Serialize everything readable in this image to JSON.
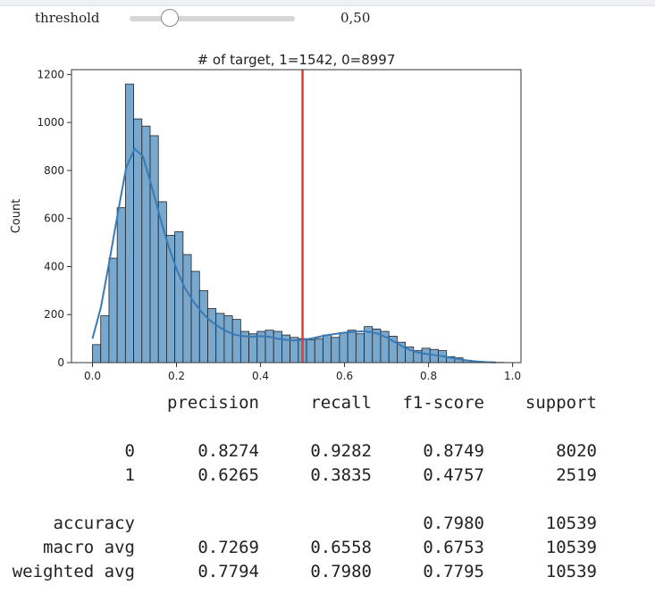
{
  "widget": {
    "label": "threshold",
    "value_text": "0,50",
    "value": 0.5,
    "min": 0,
    "max": 1
  },
  "chart_data": {
    "type": "bar",
    "title": "# of target, 1=1542, 0=8997",
    "xlabel": "",
    "ylabel": "Count",
    "xlim": [
      -0.05,
      1.02
    ],
    "ylim": [
      0,
      1220
    ],
    "xticks": [
      0.0,
      0.2,
      0.4,
      0.6,
      0.8,
      1.0
    ],
    "xtick_labels": [
      "0.0",
      "0.2",
      "0.4",
      "0.6",
      "0.8",
      "1.0"
    ],
    "yticks": [
      0,
      200,
      400,
      600,
      800,
      1000,
      1200
    ],
    "ytick_labels": [
      "0",
      "200",
      "400",
      "600",
      "800",
      "1000",
      "1200"
    ],
    "bin_start": 0.0,
    "bin_width": 0.0196,
    "counts": [
      75,
      195,
      435,
      645,
      1160,
      1015,
      985,
      945,
      670,
      530,
      545,
      450,
      380,
      300,
      225,
      205,
      195,
      180,
      130,
      120,
      130,
      135,
      130,
      115,
      105,
      100,
      95,
      100,
      115,
      105,
      125,
      135,
      120,
      150,
      140,
      130,
      110,
      85,
      65,
      50,
      60,
      55,
      50,
      25,
      20,
      10,
      5,
      3,
      1,
      1
    ],
    "kde": {
      "x": [
        0.0,
        0.02,
        0.04,
        0.06,
        0.08,
        0.1,
        0.12,
        0.14,
        0.16,
        0.18,
        0.2,
        0.22,
        0.24,
        0.26,
        0.28,
        0.3,
        0.32,
        0.34,
        0.36,
        0.38,
        0.4,
        0.42,
        0.44,
        0.46,
        0.48,
        0.5,
        0.52,
        0.54,
        0.56,
        0.58,
        0.6,
        0.62,
        0.64,
        0.66,
        0.68,
        0.7,
        0.72,
        0.74,
        0.76,
        0.78,
        0.8,
        0.82,
        0.84,
        0.86,
        0.88,
        0.9,
        0.92,
        0.94,
        0.96
      ],
      "y": [
        100,
        230,
        420,
        620,
        810,
        890,
        860,
        740,
        610,
        490,
        390,
        310,
        255,
        210,
        175,
        150,
        130,
        115,
        110,
        108,
        110,
        108,
        100,
        95,
        92,
        95,
        100,
        108,
        115,
        120,
        125,
        128,
        130,
        128,
        120,
        105,
        85,
        65,
        50,
        40,
        35,
        30,
        25,
        18,
        12,
        7,
        4,
        2,
        1
      ]
    },
    "threshold_line": 0.5,
    "colors": {
      "bar": "#79a8cf",
      "bar_edge": "#222222",
      "kde": "#3a7ab5",
      "threshold": "#e53935"
    }
  },
  "report": {
    "headers": [
      "precision",
      "recall",
      "f1-score",
      "support"
    ],
    "rows": [
      {
        "label": "0",
        "values": [
          "0.8274",
          "0.9282",
          "0.8749",
          "8020"
        ]
      },
      {
        "label": "1",
        "values": [
          "0.6265",
          "0.3835",
          "0.4757",
          "2519"
        ]
      },
      {
        "label": "accuracy",
        "values": [
          "",
          "",
          "0.7980",
          "10539"
        ]
      },
      {
        "label": "macro avg",
        "values": [
          "0.7269",
          "0.6558",
          "0.6753",
          "10539"
        ]
      },
      {
        "label": "weighted avg",
        "values": [
          "0.7794",
          "0.7980",
          "0.7795",
          "10539"
        ]
      }
    ]
  }
}
